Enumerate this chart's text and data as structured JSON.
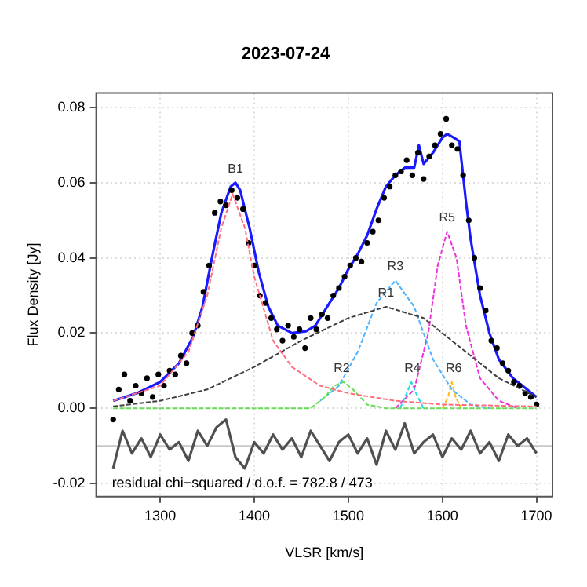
{
  "chart_data": {
    "type": "scatter",
    "title": "2023-07-24",
    "xlabel": "VLSR [km/s]",
    "ylabel": "Flux Density [Jy]",
    "xlim": [
      1232,
      1717
    ],
    "ylim": [
      -0.0235,
      0.0839
    ],
    "xticks": [
      1300,
      1400,
      1500,
      1600,
      1700
    ],
    "yticks": [
      {
        "value": -0.02,
        "label": "-0.02"
      },
      {
        "value": 0,
        "label": "0.00"
      },
      {
        "value": 0.02,
        "label": "0.02"
      },
      {
        "value": 0.04,
        "label": "0.04"
      },
      {
        "value": 0.06,
        "label": "0.06"
      },
      {
        "value": 0.08,
        "label": "0.08"
      }
    ],
    "grid": true,
    "ref_lines": [
      {
        "axis": "y",
        "value": -0.01,
        "label": null,
        "color": "#c8c8c8"
      }
    ],
    "annotations": [
      "residual chi−squared / d.o.f. = 782.8 / 473",
      {
        "text": "B1",
        "x": 1380,
        "y": 0.062
      },
      {
        "text": "R1",
        "x": 1540,
        "y": 0.029
      },
      {
        "text": "R2",
        "x": 1493,
        "y": 0.009
      },
      {
        "text": "R3",
        "x": 1550,
        "y": 0.036
      },
      {
        "text": "R4",
        "x": 1568,
        "y": 0.009
      },
      {
        "text": "R5",
        "x": 1605,
        "y": 0.049
      },
      {
        "text": "R6",
        "x": 1612,
        "y": 0.009
      }
    ],
    "series": [
      {
        "type": "line",
        "color": "#ff6f7f",
        "line_style": "dashed",
        "x": [
          1250,
          1300,
          1330,
          1350,
          1365,
          1377,
          1390,
          1400,
          1420,
          1440,
          1470,
          1500,
          1550,
          1600,
          1700
        ],
        "values": [
          0.002,
          0.006,
          0.015,
          0.03,
          0.048,
          0.057,
          0.048,
          0.035,
          0.018,
          0.011,
          0.006,
          0.004,
          0.002,
          0.001,
          0.0005
        ]
      },
      {
        "type": "line",
        "color": "#404040",
        "line_style": "dashed",
        "x": [
          1250,
          1300,
          1350,
          1400,
          1450,
          1500,
          1540,
          1580,
          1620,
          1660,
          1700
        ],
        "values": [
          0.0005,
          0.002,
          0.005,
          0.011,
          0.018,
          0.024,
          0.027,
          0.024,
          0.016,
          0.008,
          0.003
        ]
      },
      {
        "type": "line",
        "color": "#66dd55",
        "line_style": "dashed",
        "x": [
          1250,
          1460,
          1475,
          1485,
          1495,
          1505,
          1520,
          1540,
          1700
        ],
        "values": [
          0,
          0,
          0.003,
          0.006,
          0.007,
          0.005,
          0.001,
          0,
          0
        ]
      },
      {
        "type": "line",
        "color": "#4fb3ff",
        "line_style": "dashed",
        "x": [
          1470,
          1490,
          1510,
          1530,
          1550,
          1570,
          1590,
          1610,
          1630,
          1650
        ],
        "values": [
          0.002,
          0.006,
          0.015,
          0.028,
          0.034,
          0.027,
          0.013,
          0.005,
          0.001,
          0
        ]
      },
      {
        "type": "line",
        "color": "#22dddd",
        "line_style": "dashed",
        "x": [
          1555,
          1562,
          1567,
          1572,
          1580
        ],
        "values": [
          0,
          0.004,
          0.007,
          0.004,
          0
        ]
      },
      {
        "type": "line",
        "color": "#ee33dd",
        "line_style": "dashed",
        "x": [
          1550,
          1570,
          1585,
          1595,
          1605,
          1615,
          1625,
          1640,
          1660,
          1680
        ],
        "values": [
          0,
          0.005,
          0.02,
          0.038,
          0.047,
          0.04,
          0.022,
          0.008,
          0.002,
          0
        ]
      },
      {
        "type": "line",
        "color": "#ffbb22",
        "line_style": "dashed",
        "x": [
          1600,
          1606,
          1610,
          1614,
          1620
        ],
        "values": [
          0,
          0.003,
          0.007,
          0.003,
          0
        ]
      },
      {
        "type": "line",
        "color": "#505050",
        "x": [
          1250,
          1260,
          1270,
          1280,
          1290,
          1300,
          1310,
          1320,
          1330,
          1340,
          1350,
          1360,
          1370,
          1380,
          1390,
          1400,
          1410,
          1420,
          1430,
          1440,
          1450,
          1460,
          1470,
          1480,
          1490,
          1500,
          1510,
          1520,
          1530,
          1540,
          1550,
          1560,
          1570,
          1580,
          1590,
          1600,
          1610,
          1620,
          1630,
          1640,
          1650,
          1660,
          1670,
          1680,
          1690,
          1700
        ],
        "values": [
          -0.016,
          -0.006,
          -0.012,
          -0.008,
          -0.013,
          -0.007,
          -0.011,
          -0.009,
          -0.014,
          -0.006,
          -0.01,
          -0.005,
          -0.003,
          -0.013,
          -0.016,
          -0.009,
          -0.012,
          -0.007,
          -0.011,
          -0.008,
          -0.013,
          -0.006,
          -0.01,
          -0.014,
          -0.009,
          -0.007,
          -0.012,
          -0.008,
          -0.015,
          -0.006,
          -0.011,
          -0.004,
          -0.012,
          -0.009,
          -0.007,
          -0.013,
          -0.008,
          -0.011,
          -0.006,
          -0.012,
          -0.009,
          -0.014,
          -0.007,
          -0.01,
          -0.008,
          -0.012
        ]
      },
      {
        "color": "#000000",
        "marker": "circle",
        "x": [
          1250,
          1256,
          1262,
          1268,
          1274,
          1280,
          1286,
          1292,
          1298,
          1304,
          1310,
          1316,
          1322,
          1328,
          1334,
          1340,
          1346,
          1352,
          1358,
          1364,
          1370,
          1376,
          1382,
          1388,
          1394,
          1400,
          1406,
          1412,
          1418,
          1424,
          1430,
          1436,
          1442,
          1448,
          1454,
          1460,
          1466,
          1472,
          1478,
          1484,
          1490,
          1496,
          1502,
          1508,
          1514,
          1520,
          1526,
          1532,
          1538,
          1544,
          1550,
          1556,
          1562,
          1568,
          1574,
          1580,
          1586,
          1592,
          1598,
          1604,
          1610,
          1616,
          1622,
          1628,
          1634,
          1640,
          1646,
          1652,
          1658,
          1664,
          1670,
          1676,
          1682,
          1688,
          1694,
          1700
        ],
        "values": [
          -0.003,
          0.005,
          0.009,
          0.002,
          0.006,
          0.004,
          0.008,
          0.003,
          0.009,
          0.006,
          0.01,
          0.009,
          0.014,
          0.012,
          0.02,
          0.022,
          0.031,
          0.038,
          0.052,
          0.055,
          0.054,
          0.058,
          0.056,
          0.053,
          0.044,
          0.038,
          0.03,
          0.028,
          0.024,
          0.021,
          0.018,
          0.022,
          0.019,
          0.021,
          0.016,
          0.024,
          0.021,
          0.025,
          0.024,
          0.03,
          0.032,
          0.035,
          0.038,
          0.04,
          0.039,
          0.044,
          0.047,
          0.05,
          0.056,
          0.059,
          0.062,
          0.063,
          0.066,
          0.062,
          0.068,
          0.061,
          0.067,
          0.07,
          0.073,
          0.077,
          0.07,
          0.069,
          0.062,
          0.05,
          0.04,
          0.032,
          0.026,
          0.018,
          0.016,
          0.012,
          0.01,
          0.007,
          0.006,
          0.004,
          0.003,
          0.001
        ]
      },
      {
        "type": "line",
        "color": "#1a1aff",
        "x": [
          1250,
          1275,
          1300,
          1320,
          1335,
          1345,
          1355,
          1365,
          1375,
          1380,
          1385,
          1395,
          1405,
          1415,
          1425,
          1440,
          1455,
          1465,
          1475,
          1490,
          1500,
          1510,
          1520,
          1530,
          1540,
          1550,
          1560,
          1570,
          1575,
          1580,
          1590,
          1600,
          1605,
          1612,
          1618,
          1625,
          1630,
          1640,
          1650,
          1660,
          1675,
          1690,
          1700
        ],
        "values": [
          0.002,
          0.004,
          0.007,
          0.012,
          0.019,
          0.027,
          0.04,
          0.052,
          0.059,
          0.06,
          0.058,
          0.048,
          0.036,
          0.027,
          0.022,
          0.02,
          0.0205,
          0.022,
          0.026,
          0.032,
          0.037,
          0.041,
          0.046,
          0.053,
          0.059,
          0.062,
          0.064,
          0.064,
          0.07,
          0.065,
          0.068,
          0.072,
          0.073,
          0.072,
          0.071,
          0.055,
          0.045,
          0.03,
          0.02,
          0.013,
          0.008,
          0.005,
          0.003
        ]
      }
    ]
  }
}
